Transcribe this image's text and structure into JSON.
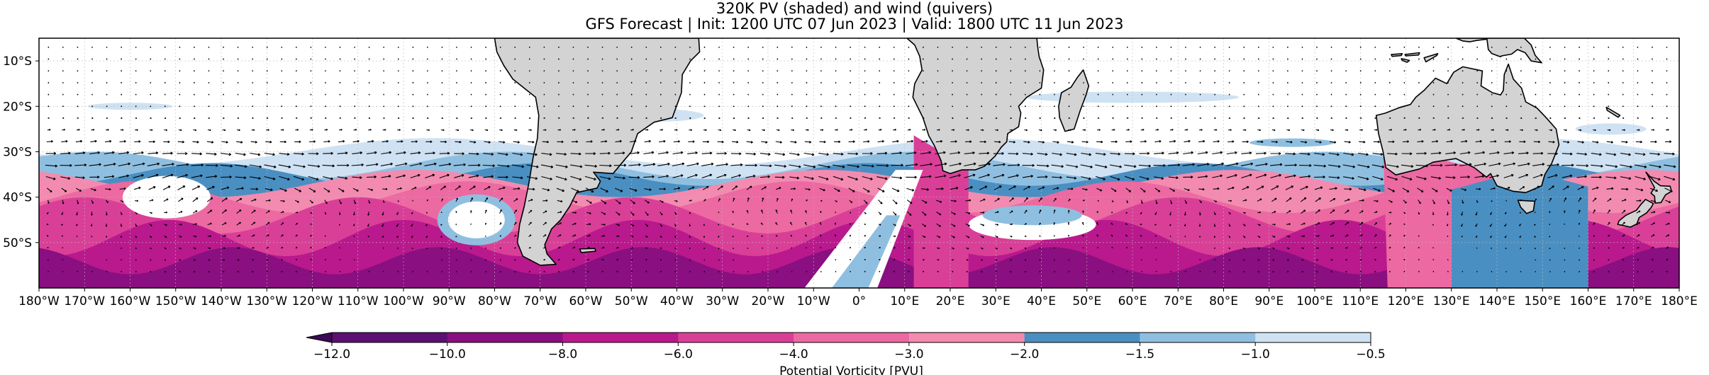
{
  "figure": {
    "title_line_1": "320K PV (shaded) and wind (quivers)",
    "title_line_2": "GFS Forecast | Init: 1200 UTC 07 Jun 2023 | Valid: 1800 UTC 11 Jun 2023"
  },
  "map": {
    "extent": {
      "lon_min": -180,
      "lon_max": 180,
      "lat_min": -60,
      "lat_max": -5
    },
    "lat_ticks": [
      {
        "value": -10,
        "label": "10°S"
      },
      {
        "value": -20,
        "label": "20°S"
      },
      {
        "value": -30,
        "label": "30°S"
      },
      {
        "value": -40,
        "label": "40°S"
      },
      {
        "value": -50,
        "label": "50°S"
      }
    ],
    "lon_ticks": [
      {
        "value": -180,
        "label": "180°W"
      },
      {
        "value": -170,
        "label": "170°W"
      },
      {
        "value": -160,
        "label": "160°W"
      },
      {
        "value": -150,
        "label": "150°W"
      },
      {
        "value": -140,
        "label": "140°W"
      },
      {
        "value": -130,
        "label": "130°W"
      },
      {
        "value": -120,
        "label": "120°W"
      },
      {
        "value": -110,
        "label": "110°W"
      },
      {
        "value": -100,
        "label": "100°W"
      },
      {
        "value": -90,
        "label": "90°W"
      },
      {
        "value": -80,
        "label": "80°W"
      },
      {
        "value": -70,
        "label": "70°W"
      },
      {
        "value": -60,
        "label": "60°W"
      },
      {
        "value": -50,
        "label": "50°W"
      },
      {
        "value": -40,
        "label": "40°W"
      },
      {
        "value": -30,
        "label": "30°W"
      },
      {
        "value": -20,
        "label": "20°W"
      },
      {
        "value": -10,
        "label": "10°W"
      },
      {
        "value": 0,
        "label": "0°"
      },
      {
        "value": 10,
        "label": "10°E"
      },
      {
        "value": 20,
        "label": "20°E"
      },
      {
        "value": 30,
        "label": "30°E"
      },
      {
        "value": 40,
        "label": "40°E"
      },
      {
        "value": 50,
        "label": "50°E"
      },
      {
        "value": 60,
        "label": "60°E"
      },
      {
        "value": 70,
        "label": "70°E"
      },
      {
        "value": 80,
        "label": "80°E"
      },
      {
        "value": 90,
        "label": "90°E"
      },
      {
        "value": 100,
        "label": "100°E"
      },
      {
        "value": 110,
        "label": "110°E"
      },
      {
        "value": 120,
        "label": "120°E"
      },
      {
        "value": 130,
        "label": "130°E"
      },
      {
        "value": 140,
        "label": "140°E"
      },
      {
        "value": 150,
        "label": "150°E"
      },
      {
        "value": 160,
        "label": "160°E"
      },
      {
        "value": 170,
        "label": "170°E"
      },
      {
        "value": 180,
        "label": "180°E"
      }
    ],
    "colors": {
      "land": "#d3d3d3",
      "ocean": "#ffffff",
      "coastline": "#000000",
      "gridline": "#bbbbbb",
      "quiver": "#000000"
    },
    "landmasses": [
      {
        "name": "South America",
        "points": [
          [
            -80,
            -5
          ],
          [
            -79.5,
            -8
          ],
          [
            -78,
            -11
          ],
          [
            -76,
            -14
          ],
          [
            -71,
            -18
          ],
          [
            -70.3,
            -22
          ],
          [
            -70.6,
            -27
          ],
          [
            -71.5,
            -31
          ],
          [
            -72.5,
            -37
          ],
          [
            -73.5,
            -42
          ],
          [
            -74.5,
            -46
          ],
          [
            -75,
            -50
          ],
          [
            -73.8,
            -53
          ],
          [
            -70,
            -55
          ],
          [
            -66.5,
            -54.8
          ],
          [
            -68.5,
            -52.5
          ],
          [
            -69,
            -50.5
          ],
          [
            -67.5,
            -47
          ],
          [
            -65.5,
            -45
          ],
          [
            -63.5,
            -42
          ],
          [
            -62,
            -39
          ],
          [
            -57.5,
            -38
          ],
          [
            -56.8,
            -36.5
          ],
          [
            -58.3,
            -34.5
          ],
          [
            -54,
            -34.8
          ],
          [
            -52.5,
            -33
          ],
          [
            -50,
            -30
          ],
          [
            -48.6,
            -26
          ],
          [
            -45,
            -23.5
          ],
          [
            -41,
            -22.5
          ],
          [
            -39,
            -17
          ],
          [
            -38.8,
            -13
          ],
          [
            -37,
            -10
          ],
          [
            -35,
            -8
          ],
          [
            -35.2,
            -5
          ]
        ]
      },
      {
        "name": "Africa",
        "points": [
          [
            10.5,
            -5
          ],
          [
            12.2,
            -6.5
          ],
          [
            13.3,
            -9
          ],
          [
            13.8,
            -12
          ],
          [
            12.2,
            -15
          ],
          [
            11.8,
            -18
          ],
          [
            14,
            -22.5
          ],
          [
            15.3,
            -26.5
          ],
          [
            16.5,
            -28.6
          ],
          [
            18,
            -32
          ],
          [
            18.4,
            -34.2
          ],
          [
            20,
            -34.8
          ],
          [
            22.5,
            -34
          ],
          [
            25.5,
            -34
          ],
          [
            27.5,
            -33.2
          ],
          [
            29.8,
            -31
          ],
          [
            31.2,
            -29
          ],
          [
            32.4,
            -27.8
          ],
          [
            32.6,
            -26
          ],
          [
            35,
            -24.5
          ],
          [
            35.5,
            -21.5
          ],
          [
            35,
            -20
          ],
          [
            36.8,
            -18
          ],
          [
            40,
            -16
          ],
          [
            40.5,
            -12
          ],
          [
            39.5,
            -9
          ],
          [
            39.2,
            -7
          ],
          [
            39,
            -5
          ]
        ]
      },
      {
        "name": "Madagascar",
        "points": [
          [
            49.2,
            -12
          ],
          [
            50.4,
            -15.5
          ],
          [
            49.8,
            -17.5
          ],
          [
            48.5,
            -21
          ],
          [
            47.2,
            -25
          ],
          [
            45.2,
            -25.5
          ],
          [
            44,
            -22.5
          ],
          [
            43.8,
            -20
          ],
          [
            44.4,
            -17
          ],
          [
            46.5,
            -15.8
          ],
          [
            48,
            -13.5
          ]
        ]
      },
      {
        "name": "Australia",
        "points": [
          [
            113.5,
            -22
          ],
          [
            114,
            -26
          ],
          [
            115,
            -30
          ],
          [
            115.6,
            -33.5
          ],
          [
            117.8,
            -35.1
          ],
          [
            123,
            -33.8
          ],
          [
            126,
            -32.3
          ],
          [
            131,
            -31.5
          ],
          [
            135,
            -33.5
          ],
          [
            137.7,
            -35.6
          ],
          [
            138.6,
            -34.8
          ],
          [
            140,
            -37.5
          ],
          [
            143.5,
            -38.7
          ],
          [
            146.3,
            -39
          ],
          [
            149.8,
            -37.5
          ],
          [
            150.5,
            -35
          ],
          [
            152,
            -32.6
          ],
          [
            153.6,
            -28.5
          ],
          [
            153,
            -25
          ],
          [
            150.8,
            -22.5
          ],
          [
            148.8,
            -20.4
          ],
          [
            146.3,
            -19
          ],
          [
            145.4,
            -16
          ],
          [
            143.6,
            -14
          ],
          [
            142.5,
            -10.7
          ],
          [
            141.6,
            -13
          ],
          [
            141.4,
            -16.5
          ],
          [
            140.8,
            -17.5
          ],
          [
            139,
            -17
          ],
          [
            136.5,
            -15.5
          ],
          [
            136.8,
            -12.2
          ],
          [
            132.5,
            -11.3
          ],
          [
            130.5,
            -12.5
          ],
          [
            129,
            -15
          ],
          [
            126.5,
            -13.8
          ],
          [
            124,
            -16.5
          ],
          [
            122.2,
            -18
          ],
          [
            121,
            -19.6
          ],
          [
            118.5,
            -20.3
          ],
          [
            115.5,
            -21.5
          ]
        ]
      },
      {
        "name": "Tasmania",
        "points": [
          [
            144.6,
            -40.7
          ],
          [
            148.3,
            -40.9
          ],
          [
            148,
            -43
          ],
          [
            146.5,
            -43.6
          ],
          [
            145.2,
            -42.2
          ]
        ]
      },
      {
        "name": "New Guinea",
        "points": [
          [
            131,
            -5
          ],
          [
            132.5,
            -5.6
          ],
          [
            134,
            -5.8
          ],
          [
            135.5,
            -5.5
          ],
          [
            137.8,
            -5.2
          ],
          [
            138.1,
            -7.5
          ],
          [
            138.9,
            -8.4
          ],
          [
            140.8,
            -9.1
          ],
          [
            141,
            -8.9
          ],
          [
            143.2,
            -8.5
          ],
          [
            144.5,
            -7.5
          ],
          [
            146.2,
            -8.2
          ],
          [
            147.5,
            -10
          ],
          [
            149.8,
            -10.4
          ],
          [
            148.4,
            -8.8
          ],
          [
            147.5,
            -6.5
          ],
          [
            146,
            -5
          ]
        ]
      },
      {
        "name": "New Zealand North Island",
        "points": [
          [
            172.7,
            -34.5
          ],
          [
            174.5,
            -36.5
          ],
          [
            175.9,
            -37.5
          ],
          [
            178,
            -37.6
          ],
          [
            178.3,
            -38.7
          ],
          [
            177,
            -39.5
          ],
          [
            176,
            -41.2
          ],
          [
            174.7,
            -41.3
          ],
          [
            174.6,
            -39.8
          ],
          [
            173.8,
            -39.1
          ],
          [
            174.6,
            -37.9
          ],
          [
            173.1,
            -35.2
          ]
        ]
      },
      {
        "name": "New Zealand South Island",
        "points": [
          [
            172.6,
            -40.5
          ],
          [
            174.3,
            -41.4
          ],
          [
            173.9,
            -42.2
          ],
          [
            172.8,
            -43.5
          ],
          [
            171.2,
            -44.5
          ],
          [
            170.7,
            -45.9
          ],
          [
            169.3,
            -46.6
          ],
          [
            166.5,
            -46
          ],
          [
            166.8,
            -45.2
          ],
          [
            168.3,
            -44
          ],
          [
            170.6,
            -42.9
          ],
          [
            171.6,
            -41.6
          ]
        ]
      },
      {
        "name": "Timor",
        "points": [
          [
            124,
            -9.3
          ],
          [
            127,
            -8.4
          ],
          [
            126.8,
            -8.8
          ],
          [
            124.4,
            -10.2
          ]
        ]
      },
      {
        "name": "Flores",
        "points": [
          [
            119.8,
            -8.6
          ],
          [
            123,
            -8.2
          ],
          [
            122.8,
            -8.7
          ],
          [
            120,
            -8.9
          ]
        ]
      },
      {
        "name": "Sumbawa",
        "points": [
          [
            116.8,
            -8.6
          ],
          [
            119.2,
            -8.4
          ],
          [
            119,
            -8.8
          ],
          [
            117,
            -9
          ]
        ]
      },
      {
        "name": "Sumba",
        "points": [
          [
            119,
            -9.5
          ],
          [
            120.8,
            -9.9
          ],
          [
            120.3,
            -10.3
          ],
          [
            119.2,
            -9.9
          ]
        ]
      },
      {
        "name": "New Caledonia",
        "points": [
          [
            164,
            -20.2
          ],
          [
            167,
            -22
          ],
          [
            166.6,
            -22.4
          ],
          [
            164.2,
            -20.9
          ]
        ]
      },
      {
        "name": "Falkland Islands",
        "points": [
          [
            -61.3,
            -51.4
          ],
          [
            -58,
            -51.3
          ],
          [
            -57.8,
            -51.9
          ],
          [
            -61,
            -52.2
          ]
        ]
      }
    ],
    "colorbar": {
      "label": "Potential Vorticity [PVU]",
      "levels": [
        -12.0,
        -10.0,
        -8.0,
        -6.0,
        -4.0,
        -3.0,
        -2.0,
        -1.5,
        -1.0,
        -0.5
      ],
      "tick_labels": [
        "−12.0",
        "−10.0",
        "−8.0",
        "−6.0",
        "−4.0",
        "−3.0",
        "−2.0",
        "−1.5",
        "−1.0",
        "−0.5"
      ],
      "colors": [
        "#5e0f73",
        "#8a0f80",
        "#b9198d",
        "#da3f98",
        "#ec69a1",
        "#f38bb0",
        "#4a8fc2",
        "#8fbfe0",
        "#cfe2f3"
      ],
      "extend_color": "#3b0a52"
    }
  }
}
